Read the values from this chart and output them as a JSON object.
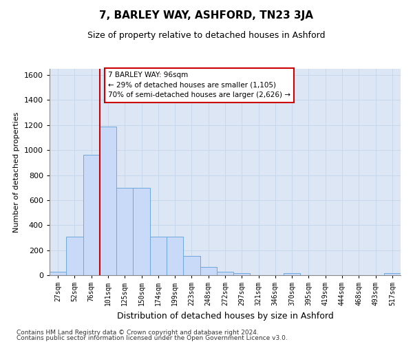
{
  "title": "7, BARLEY WAY, ASHFORD, TN23 3JA",
  "subtitle": "Size of property relative to detached houses in Ashford",
  "xlabel": "Distribution of detached houses by size in Ashford",
  "ylabel": "Number of detached properties",
  "categories": [
    "27sqm",
    "52sqm",
    "76sqm",
    "101sqm",
    "125sqm",
    "150sqm",
    "174sqm",
    "199sqm",
    "223sqm",
    "248sqm",
    "272sqm",
    "297sqm",
    "321sqm",
    "346sqm",
    "370sqm",
    "395sqm",
    "419sqm",
    "444sqm",
    "468sqm",
    "493sqm",
    "517sqm"
  ],
  "values": [
    25,
    310,
    960,
    1190,
    700,
    700,
    310,
    310,
    155,
    65,
    25,
    15,
    0,
    0,
    15,
    0,
    0,
    0,
    0,
    0,
    15
  ],
  "bar_color": "#c9daf8",
  "bar_edge_color": "#6fa8dc",
  "vline_x": 2.5,
  "annotation_text": "7 BARLEY WAY: 96sqm\n← 29% of detached houses are smaller (1,105)\n70% of semi-detached houses are larger (2,626) →",
  "annotation_box_color": "#ffffff",
  "annotation_box_edge": "#cc0000",
  "vline_color": "#cc0000",
  "ylim": [
    0,
    1650
  ],
  "yticks": [
    0,
    200,
    400,
    600,
    800,
    1000,
    1200,
    1400,
    1600
  ],
  "grid_color": "#c5d5ea",
  "background_color": "#dce6f5",
  "footer_line1": "Contains HM Land Registry data © Crown copyright and database right 2024.",
  "footer_line2": "Contains public sector information licensed under the Open Government Licence v3.0."
}
